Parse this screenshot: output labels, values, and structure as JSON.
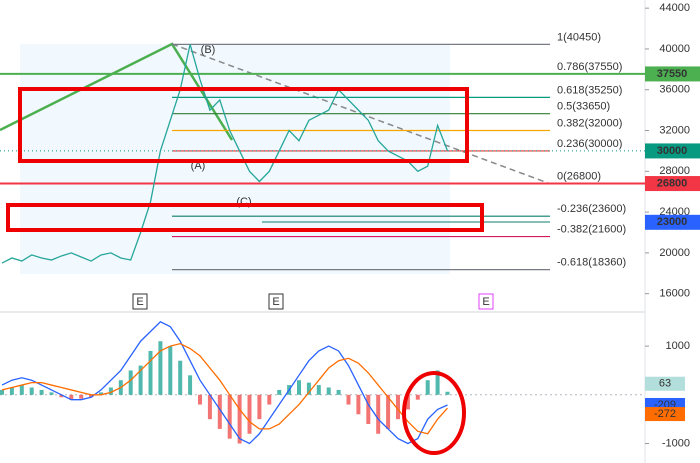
{
  "chart_data": [
    {
      "type": "line",
      "ylim": [
        14400,
        44800
      ],
      "yticks": [
        16000,
        20000,
        24000,
        28000,
        32000,
        36000,
        40000,
        44000
      ],
      "series": [
        {
          "color": "#26a69a",
          "values": [
            19000,
            19500,
            19200,
            19800,
            19500,
            19300,
            19700,
            20000,
            19600,
            19200,
            19800,
            20000,
            19500,
            19300,
            22000,
            25000,
            30000,
            33000,
            36000,
            40450,
            37000,
            34000,
            35000,
            32000,
            30000,
            28000,
            27000,
            28000,
            30000,
            32000,
            31000,
            33000,
            33500,
            34000,
            36000,
            35000,
            34000,
            33000,
            31000,
            30000,
            29500,
            29000,
            28000,
            28500,
            32500,
            30000
          ]
        }
      ],
      "levels": [
        {
          "value": 40450,
          "label": "1(40450)",
          "color": "#787b86"
        },
        {
          "value": 37550,
          "label": "0.786(37550)",
          "color": "#00a2c7"
        },
        {
          "value": 35250,
          "label": "0.618(35250)",
          "color": "#089981"
        },
        {
          "value": 33650,
          "label": "0.5(33650)",
          "color": "#2e7d32"
        },
        {
          "value": 32000,
          "label": "0.382(32000)",
          "color": "#f7a600"
        },
        {
          "value": 30000,
          "label": "0.236(30000)",
          "color": "#e53935"
        },
        {
          "value": 26800,
          "label": "0(26800)",
          "color": "#787b86"
        },
        {
          "value": 23600,
          "label": "-0.236(23600)",
          "color": "#0c7f6e"
        },
        {
          "value": 21600,
          "label": "-0.382(21600)",
          "color": "#d81b60"
        },
        {
          "value": 18360,
          "label": "-0.618(18360)",
          "color": "#787b86"
        }
      ],
      "price_tags": [
        {
          "value": 37550,
          "color": "#4caf50",
          "line_style": "solid"
        },
        {
          "value": 30000,
          "color": "#089981",
          "line_style": "dotted"
        },
        {
          "value": 26800,
          "color": "#f23645",
          "line_style": "solid"
        },
        {
          "value": 23000,
          "color": "#2962ff"
        }
      ],
      "annotations": [
        "(A)",
        "(B)",
        "(C)"
      ],
      "events": [
        "E",
        "E",
        "E"
      ]
    },
    {
      "type": "bar",
      "ylim": [
        -1400,
        1700
      ],
      "yticks": [
        1000,
        -1000
      ],
      "color_up": "#26a69a",
      "color_down": "#ef5350",
      "values": [
        100,
        150,
        200,
        150,
        100,
        50,
        -50,
        -100,
        -80,
        -50,
        50,
        150,
        300,
        500,
        600,
        900,
        1100,
        1000,
        700,
        400,
        -200,
        -500,
        -700,
        -900,
        -1000,
        -800,
        -500,
        -200,
        100,
        200,
        300,
        250,
        200,
        150,
        100,
        -200,
        -400,
        -600,
        -800,
        -700,
        -500,
        -300,
        -100,
        300,
        500,
        63
      ],
      "series": [
        {
          "color": "#2962ff",
          "values": [
            200,
            300,
            350,
            300,
            200,
            100,
            0,
            -100,
            -100,
            -50,
            100,
            300,
            500,
            800,
            1100,
            1300,
            1500,
            1400,
            1100,
            700,
            300,
            0,
            -300,
            -600,
            -900,
            -1000,
            -800,
            -500,
            -200,
            100,
            400,
            700,
            900,
            1000,
            900,
            600,
            200,
            -200,
            -500,
            -700,
            -900,
            -1000,
            -900,
            -500,
            -300,
            -209
          ]
        },
        {
          "color": "#ff6d00",
          "values": [
            100,
            150,
            200,
            250,
            250,
            200,
            150,
            100,
            50,
            0,
            0,
            50,
            150,
            300,
            500,
            700,
            900,
            1000,
            1050,
            950,
            800,
            550,
            300,
            0,
            -300,
            -550,
            -700,
            -700,
            -600,
            -400,
            -200,
            50,
            300,
            550,
            700,
            750,
            650,
            450,
            200,
            -50,
            -300,
            -550,
            -750,
            -800,
            -500,
            -272
          ]
        }
      ],
      "value_tags": [
        {
          "value": 63,
          "color": "#b2dfdb",
          "text_color": "#1b5e20"
        },
        {
          "value": -209,
          "color": "#2962ff",
          "text_color": "#ffffff"
        },
        {
          "value": -272,
          "color": "#ff6d00",
          "text_color": "#ffffff"
        }
      ]
    }
  ]
}
